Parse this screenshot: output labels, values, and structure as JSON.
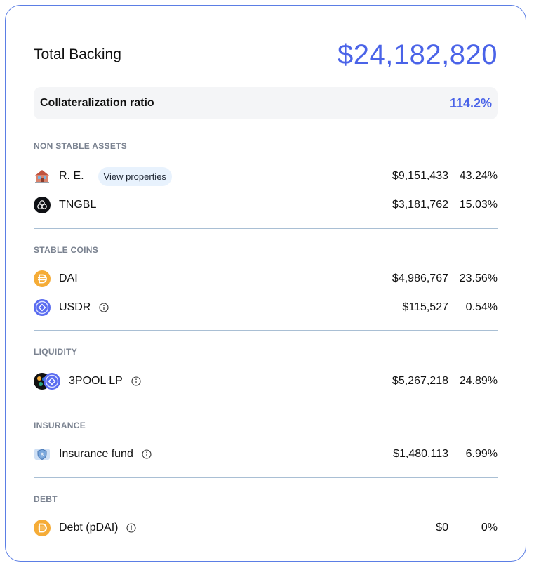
{
  "header": {
    "title": "Total Backing",
    "total": "$24,182,820"
  },
  "ratio": {
    "label": "Collateralization ratio",
    "value": "114.2%"
  },
  "sections": [
    {
      "title": "NON STABLE ASSETS",
      "rows": [
        {
          "name": "R. E.",
          "link": "View properties",
          "amount": "$9,151,433",
          "pct": "43.24%",
          "icon": "house-icon"
        },
        {
          "name": "TNGBL",
          "amount": "$3,181,762",
          "pct": "15.03%",
          "icon": "tngbl-token-icon"
        }
      ]
    },
    {
      "title": "STABLE COINS",
      "rows": [
        {
          "name": "DAI",
          "amount": "$4,986,767",
          "pct": "23.56%",
          "icon": "dai-coin-icon"
        },
        {
          "name": "USDR",
          "amount": "$115,527",
          "pct": "0.54%",
          "icon": "usdr-coin-icon",
          "info": "info-icon"
        }
      ]
    },
    {
      "title": "LIQUIDITY",
      "rows": [
        {
          "name": "3POOL LP",
          "amount": "$5,267,218",
          "pct": "24.89%",
          "icon": "3pool-lp-icon",
          "info": "info-icon"
        }
      ]
    },
    {
      "title": "INSURANCE",
      "rows": [
        {
          "name": "Insurance fund",
          "amount": "$1,480,113",
          "pct": "6.99%",
          "icon": "insurance-shield-icon",
          "info": "info-icon"
        }
      ]
    },
    {
      "title": "DEBT",
      "rows": [
        {
          "name": "Debt (pDAI)",
          "amount": "$0",
          "pct": "0%",
          "icon": "pdai-coin-icon",
          "info": "info-icon"
        }
      ]
    }
  ],
  "colors": {
    "accent": "#4a63e8",
    "border": "#5b7ee5",
    "divider": "#a9bfd4",
    "section_title": "#7a8290",
    "pill_bg": "#e8f2fd",
    "dai": "#f5ac37"
  }
}
